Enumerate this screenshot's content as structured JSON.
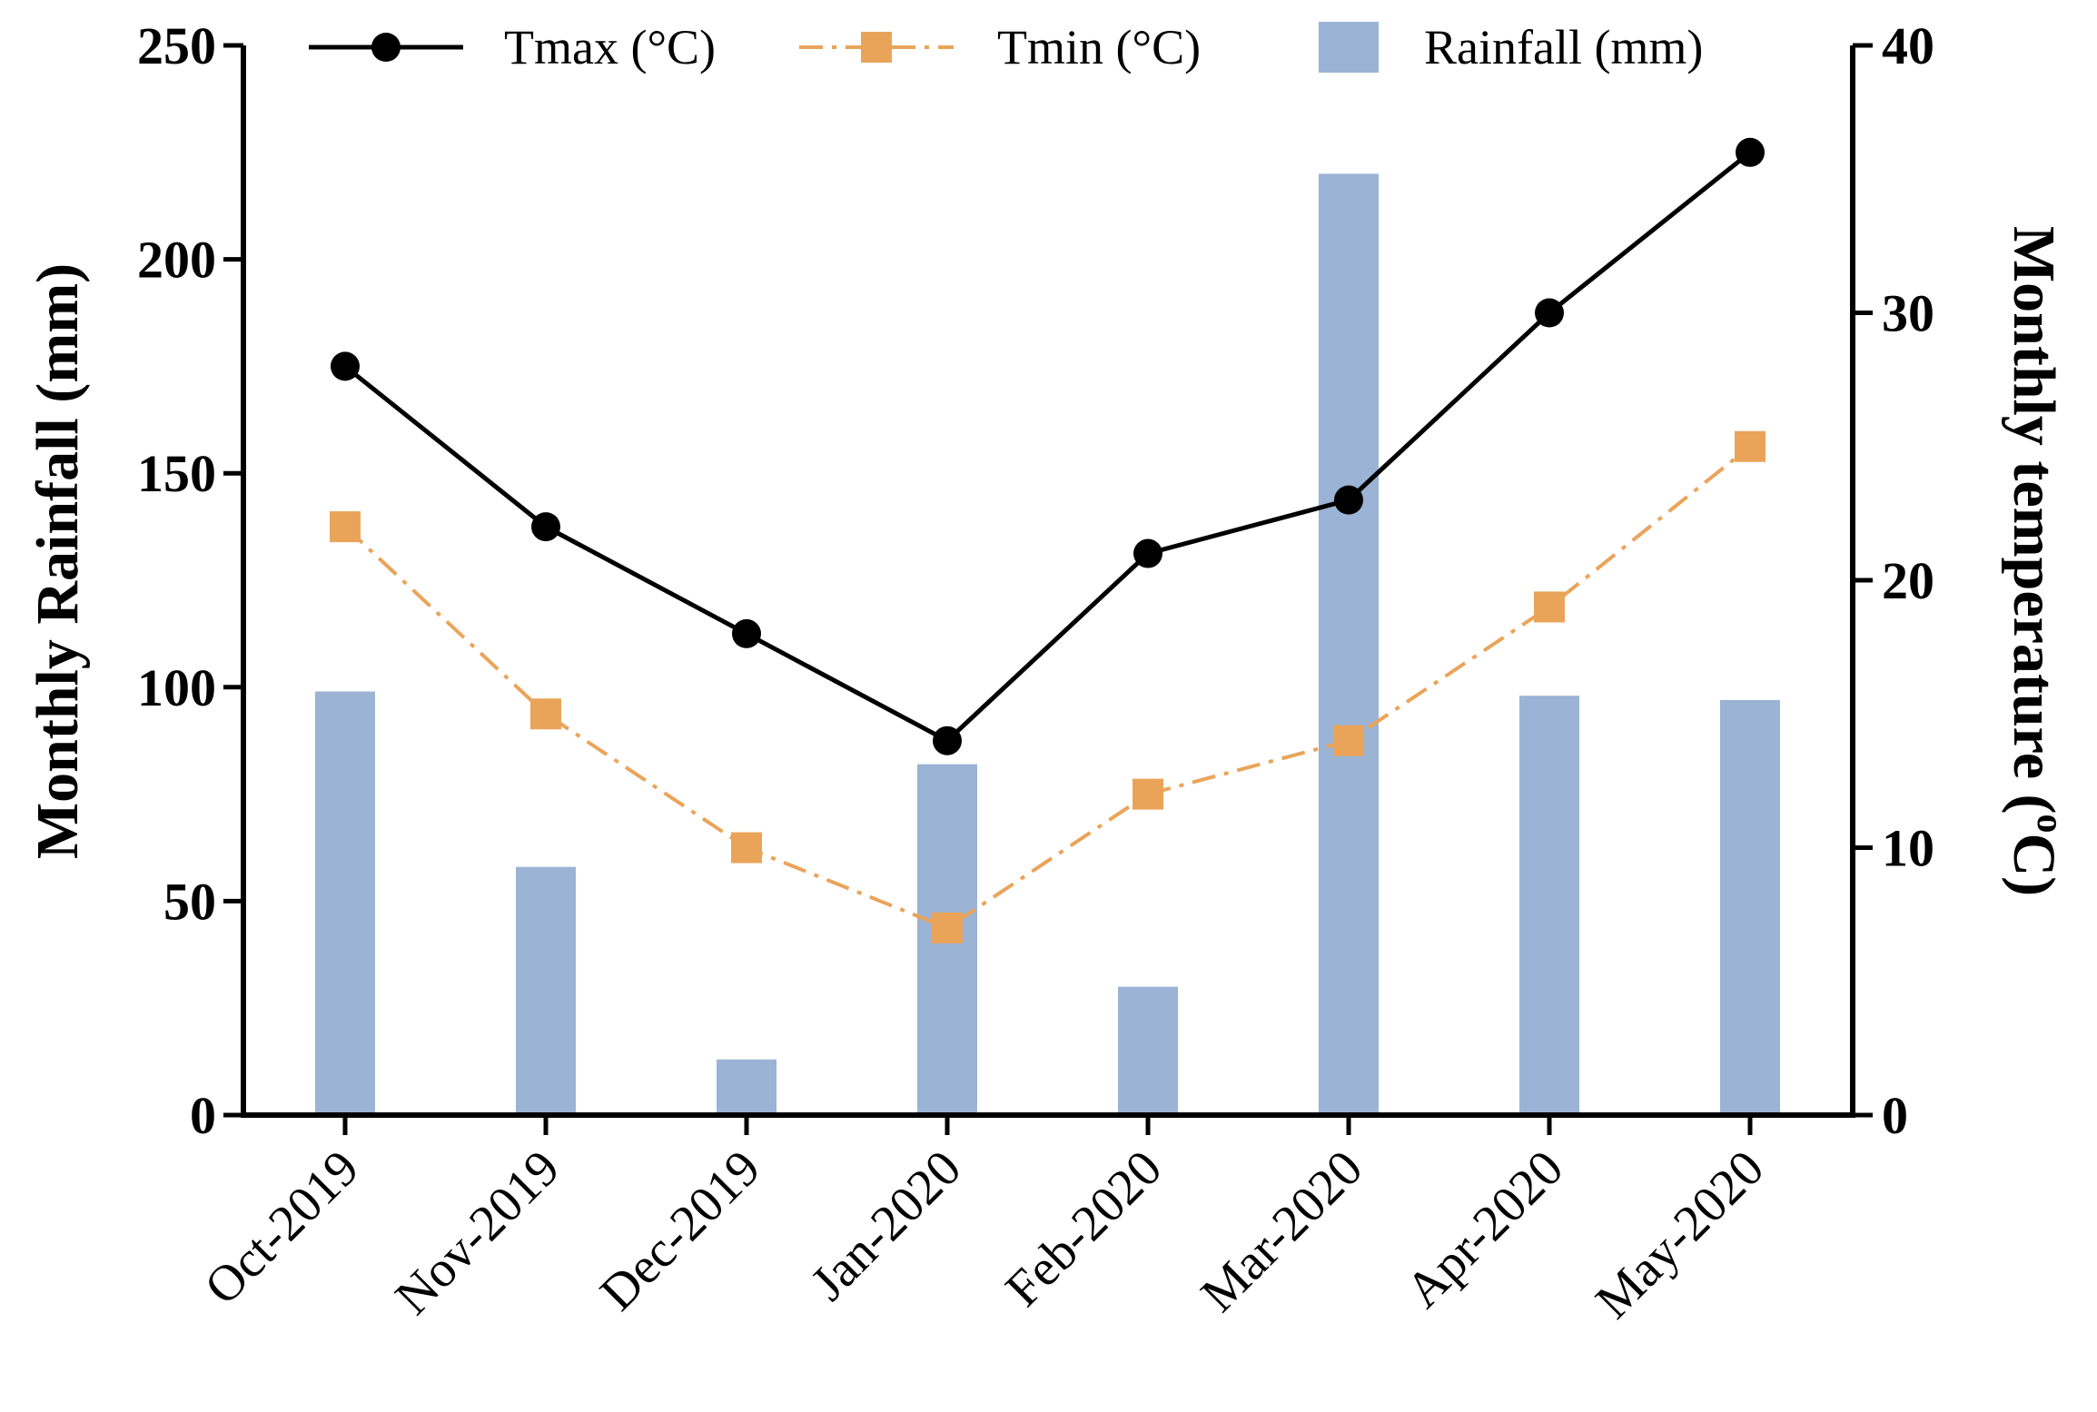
{
  "chart_data": {
    "type": "bar+line",
    "categories": [
      "Oct-2019",
      "Nov-2019",
      "Dec-2019",
      "Jan-2020",
      "Feb-2020",
      "Mar-2020",
      "Apr-2020",
      "May-2020"
    ],
    "bars": {
      "name": "Rainfall (mm)",
      "axis": "left",
      "values": [
        99,
        58,
        13,
        82,
        30,
        220,
        98,
        97
      ],
      "color": "#9bb3d4"
    },
    "series": [
      {
        "name": "Tmax (°C)",
        "axis": "right",
        "values": [
          28,
          22,
          18,
          14,
          21,
          23,
          30,
          36
        ],
        "color": "#000000",
        "marker": "circle",
        "line_style": "solid"
      },
      {
        "name": "Tmin (°C)",
        "axis": "right",
        "values": [
          22,
          15,
          10,
          7,
          12,
          14,
          19,
          25
        ],
        "color": "#eaa45a",
        "marker": "square",
        "line_style": "dash-dot"
      }
    ],
    "y_left": {
      "label": "Monthly Rainfall (mm)",
      "ylim": [
        0,
        250
      ],
      "ticks": [
        0,
        50,
        100,
        150,
        200,
        250
      ]
    },
    "y_right": {
      "label_main": "Monthly temperature (",
      "label_sup": "o",
      "label_end": "C)",
      "ylim": [
        0,
        40
      ],
      "ticks": [
        0,
        10,
        20,
        30,
        40
      ]
    },
    "legend_position": "top",
    "grid": false
  }
}
